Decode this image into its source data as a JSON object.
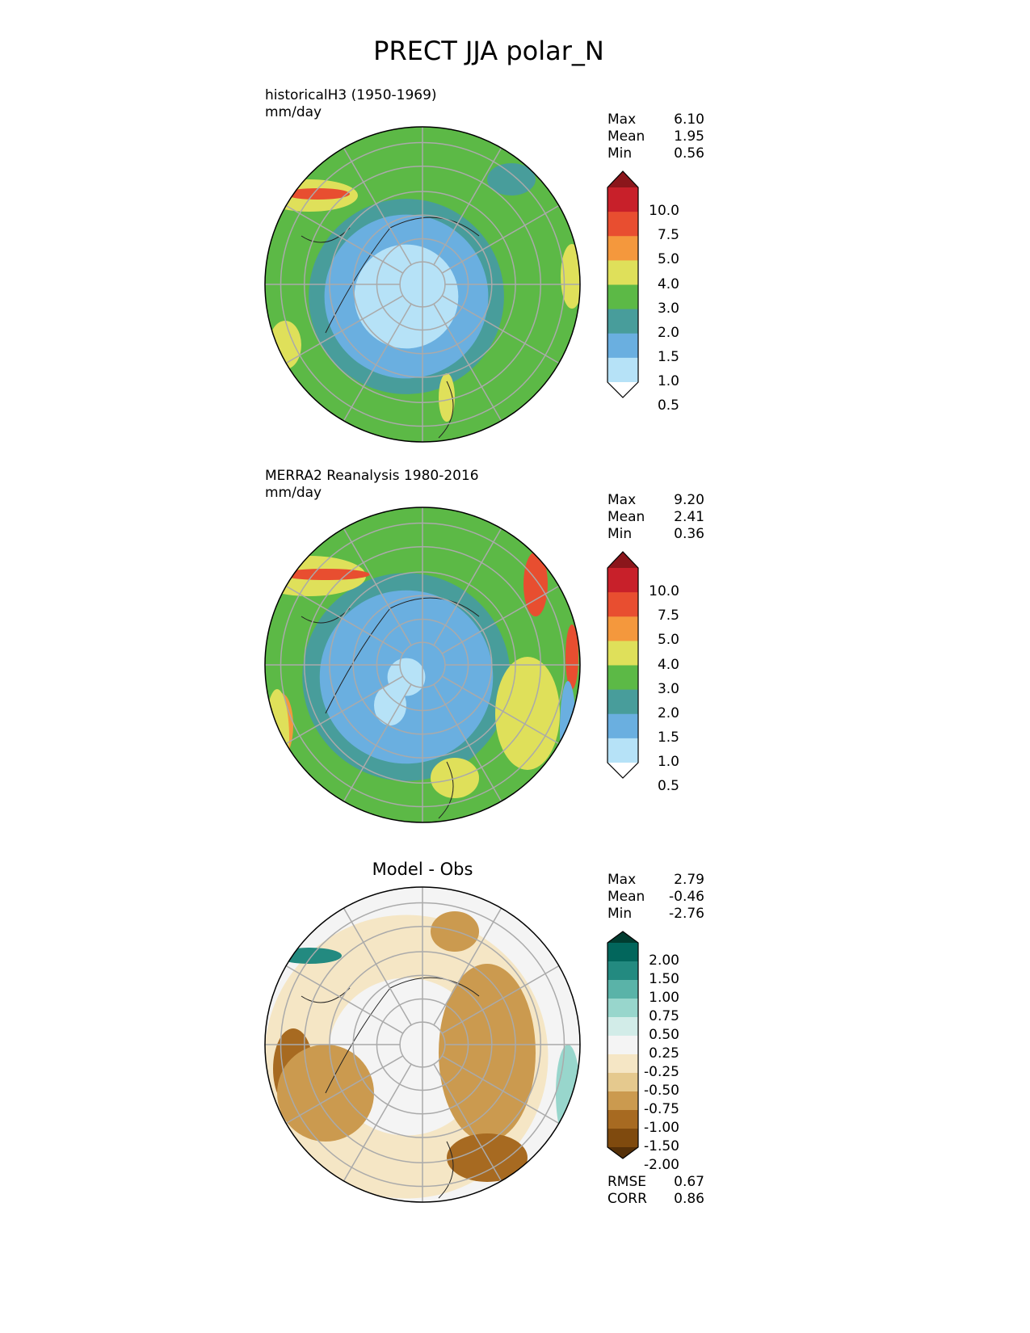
{
  "title": "PRECT JJA polar_N",
  "panels": [
    {
      "title_lines": [
        "historicalH3 (1950-1969)",
        "mm/day"
      ],
      "stats": [
        {
          "label": "Max",
          "value": "6.10"
        },
        {
          "label": "Mean",
          "value": "1.95"
        },
        {
          "label": "Min",
          "value": "0.56"
        }
      ],
      "colorbar": {
        "labels": [
          "10.0",
          "7.5",
          "5.0",
          "4.0",
          "3.0",
          "2.0",
          "1.5",
          "1.0",
          "0.5"
        ],
        "colors": [
          "#8b161b",
          "#c8202a",
          "#e84e30",
          "#f4983d",
          "#dfe05a",
          "#5cb946",
          "#489d9b",
          "#6aafe0",
          "#b6e2f7",
          "#ffffff"
        ]
      }
    },
    {
      "title_lines": [
        "MERRA2 Reanalysis 1980-2016",
        "mm/day"
      ],
      "stats": [
        {
          "label": "Max",
          "value": "9.20"
        },
        {
          "label": "Mean",
          "value": "2.41"
        },
        {
          "label": "Min",
          "value": "0.36"
        }
      ],
      "colorbar": {
        "labels": [
          "10.0",
          "7.5",
          "5.0",
          "4.0",
          "3.0",
          "2.0",
          "1.5",
          "1.0",
          "0.5"
        ],
        "colors": [
          "#8b161b",
          "#c8202a",
          "#e84e30",
          "#f4983d",
          "#dfe05a",
          "#5cb946",
          "#489d9b",
          "#6aafe0",
          "#b6e2f7",
          "#ffffff"
        ]
      }
    },
    {
      "title": "Model - Obs",
      "stats": [
        {
          "label": "Max",
          "value": "2.79"
        },
        {
          "label": "Mean",
          "value": "-0.46"
        },
        {
          "label": "Min",
          "value": "-2.76"
        }
      ],
      "colorbar": {
        "labels": [
          "2.00",
          "1.50",
          "1.00",
          "0.75",
          "0.50",
          "0.25",
          "-0.25",
          "-0.50",
          "-0.75",
          "-1.00",
          "-1.50",
          "-2.00"
        ],
        "colors": [
          "#013c30",
          "#02665c",
          "#238a80",
          "#5ab3a8",
          "#98d6cc",
          "#d2ece8",
          "#f4f4f4",
          "#f5e6c5",
          "#e5c98e",
          "#cb9a4f",
          "#a76a21",
          "#7f4a0e",
          "#553008"
        ]
      },
      "metrics": [
        {
          "label": "RMSE",
          "value": "0.67"
        },
        {
          "label": "CORR",
          "value": "0.86"
        }
      ]
    }
  ]
}
